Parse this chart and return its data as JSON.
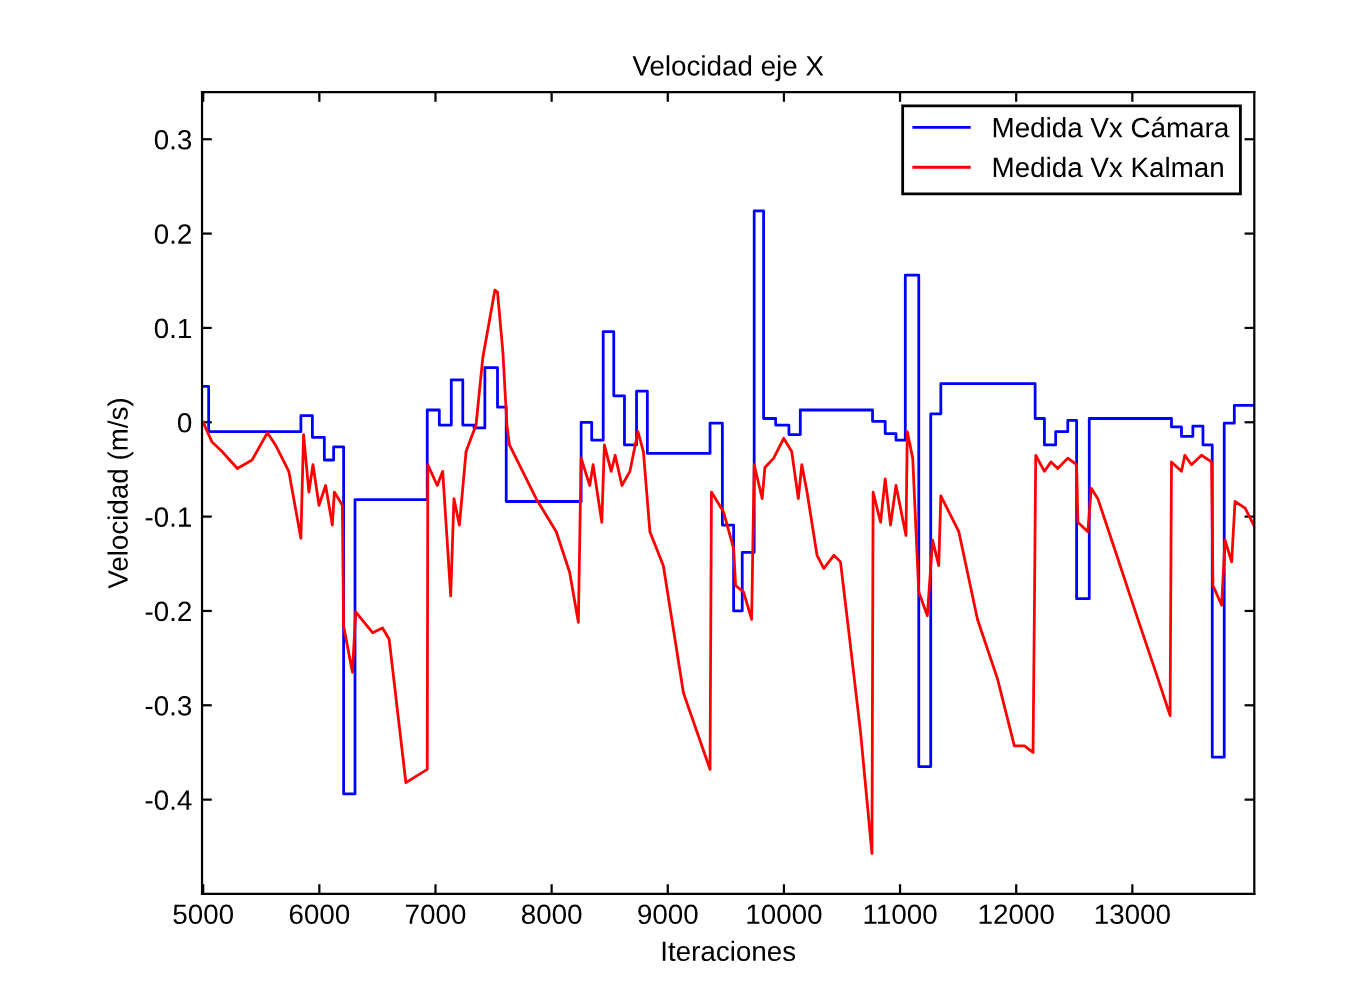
{
  "chart_data": {
    "type": "line",
    "title": "Velocidad eje X",
    "xlabel": "Iteraciones",
    "ylabel": "Velocidad (m/s)",
    "xlim": [
      4990,
      14050
    ],
    "xticks": [
      5000,
      6000,
      7000,
      8000,
      9000,
      10000,
      11000,
      12000,
      13000
    ],
    "ylim": [
      -0.5,
      0.35
    ],
    "yticks": [
      -0.4,
      -0.3,
      -0.2,
      -0.1,
      0,
      0.1,
      0.2,
      0.3
    ],
    "grid": false,
    "legend": "top right",
    "marker": "none",
    "line_style": "solid",
    "series": [
      {
        "name": "Medida Vx Cámara",
        "type": "step",
        "color": "#0000ff",
        "x": [
          5000,
          5047,
          5841,
          5940,
          6043,
          6123,
          6209,
          6307,
          6929,
          7033,
          7136,
          7235,
          7332,
          7425,
          7534,
          7609,
          8254,
          8345,
          8444,
          8535,
          8627,
          8731,
          8824,
          9364,
          9470,
          9567,
          9641,
          9744,
          9825,
          9929,
          10043,
          10141,
          10763,
          10872,
          10965,
          11045,
          11161,
          11264,
          11351,
          12163,
          12243,
          12340,
          12444,
          12520,
          12629,
          13337,
          13423,
          13521,
          13608,
          13688,
          13791,
          13878,
          14050
        ],
        "values": [
          0.038,
          -0.01,
          0.007,
          -0.016,
          -0.04,
          -0.026,
          -0.394,
          -0.082,
          0.013,
          -0.003,
          0.045,
          -0.003,
          -0.006,
          0.058,
          0.016,
          -0.084,
          0.0,
          -0.019,
          0.096,
          0.028,
          -0.024,
          0.033,
          -0.033,
          -0.001,
          -0.109,
          -0.2,
          -0.138,
          0.224,
          0.004,
          -0.003,
          -0.013,
          0.013,
          0.001,
          -0.012,
          -0.019,
          0.156,
          -0.365,
          0.009,
          0.041,
          0.004,
          -0.024,
          -0.01,
          0.002,
          -0.187,
          0.004,
          -0.005,
          -0.015,
          -0.004,
          -0.024,
          -0.355,
          -0.001,
          0.018,
          0.018
        ]
      },
      {
        "name": "Medida Vx Kalman",
        "color": "#ff0000",
        "x": [
          5000,
          5076,
          5162,
          5294,
          5421,
          5553,
          5622,
          5737,
          5841,
          5864,
          5910,
          5945,
          5997,
          6054,
          6112,
          6129,
          6198,
          6209,
          6285,
          6313,
          6458,
          6544,
          6601,
          6745,
          6929,
          6934,
          7015,
          7062,
          7131,
          7159,
          7206,
          7263,
          7349,
          7407,
          7511,
          7534,
          7580,
          7615,
          7637,
          7867,
          8040,
          8155,
          8230,
          8254,
          8328,
          8357,
          8432,
          8454,
          8513,
          8547,
          8605,
          8674,
          8743,
          8790,
          8846,
          8962,
          9135,
          9364,
          9376,
          9480,
          9567,
          9584,
          9653,
          9722,
          9744,
          9813,
          9836,
          9912,
          9998,
          10067,
          10124,
          10154,
          10199,
          10285,
          10343,
          10430,
          10487,
          10573,
          10660,
          10758,
          10768,
          10832,
          10872,
          10918,
          10965,
          11051,
          11062,
          11109,
          11161,
          11235,
          11280,
          11333,
          11351,
          11506,
          11667,
          11839,
          11984,
          12071,
          12145,
          12157,
          12168,
          12243,
          12300,
          12358,
          12444,
          12520,
          12531,
          12617,
          12646,
          12703,
          12876,
          13048,
          13221,
          13325,
          13337,
          13423,
          13452,
          13509,
          13595,
          13682,
          13694,
          13769,
          13798,
          13855,
          13884,
          13971,
          14045
        ],
        "values": [
          0.0,
          -0.021,
          -0.031,
          -0.049,
          -0.04,
          -0.011,
          -0.024,
          -0.052,
          -0.123,
          -0.013,
          -0.074,
          -0.045,
          -0.088,
          -0.067,
          -0.109,
          -0.074,
          -0.088,
          -0.216,
          -0.265,
          -0.201,
          -0.223,
          -0.218,
          -0.23,
          -0.382,
          -0.368,
          -0.045,
          -0.067,
          -0.052,
          -0.184,
          -0.081,
          -0.109,
          -0.031,
          -0.003,
          0.068,
          0.14,
          0.138,
          0.075,
          -0.003,
          -0.024,
          -0.081,
          -0.116,
          -0.159,
          -0.212,
          -0.038,
          -0.067,
          -0.045,
          -0.106,
          -0.024,
          -0.052,
          -0.035,
          -0.067,
          -0.052,
          -0.01,
          -0.031,
          -0.116,
          -0.152,
          -0.287,
          -0.368,
          -0.074,
          -0.095,
          -0.134,
          -0.173,
          -0.18,
          -0.209,
          -0.045,
          -0.081,
          -0.048,
          -0.038,
          -0.017,
          -0.031,
          -0.081,
          -0.045,
          -0.074,
          -0.141,
          -0.155,
          -0.141,
          -0.148,
          -0.237,
          -0.329,
          -0.457,
          -0.074,
          -0.106,
          -0.06,
          -0.109,
          -0.067,
          -0.12,
          -0.01,
          -0.038,
          -0.18,
          -0.205,
          -0.125,
          -0.152,
          -0.078,
          -0.116,
          -0.209,
          -0.272,
          -0.343,
          -0.343,
          -0.35,
          -0.194,
          -0.035,
          -0.052,
          -0.042,
          -0.049,
          -0.038,
          -0.045,
          -0.106,
          -0.116,
          -0.07,
          -0.081,
          -0.145,
          -0.209,
          -0.272,
          -0.311,
          -0.042,
          -0.052,
          -0.035,
          -0.045,
          -0.035,
          -0.042,
          -0.173,
          -0.194,
          -0.125,
          -0.148,
          -0.084,
          -0.091,
          -0.109
        ]
      }
    ]
  }
}
